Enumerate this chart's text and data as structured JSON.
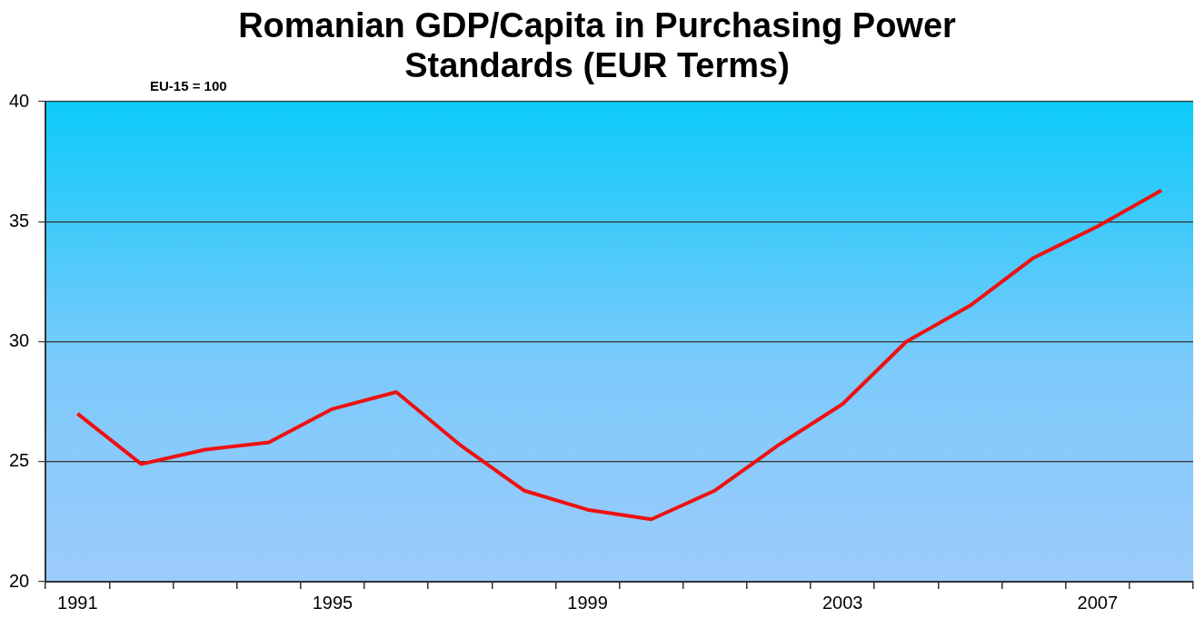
{
  "chart_data": {
    "type": "line",
    "title": "Romanian GDP/Capita in Purchasing Power Standards (EUR Terms)",
    "subtitle": "EU-15 = 100",
    "categories": [
      "1991",
      null,
      null,
      null,
      "1995",
      null,
      null,
      null,
      "1999",
      null,
      null,
      null,
      "2003",
      null,
      null,
      null,
      "2007",
      null
    ],
    "series": [
      {
        "color": "#ee1111",
        "values": [
          27.0,
          24.9,
          25.5,
          25.8,
          27.2,
          27.9,
          25.7,
          23.8,
          23.0,
          22.6,
          23.8,
          25.7,
          27.4,
          30.0,
          31.5,
          33.5,
          34.8,
          36.3
        ]
      }
    ],
    "ylim": [
      20,
      40
    ],
    "yticks": [
      20,
      25,
      30,
      35,
      40
    ],
    "grid": "y",
    "legend": false,
    "marker": "none",
    "line_style": "solid"
  }
}
